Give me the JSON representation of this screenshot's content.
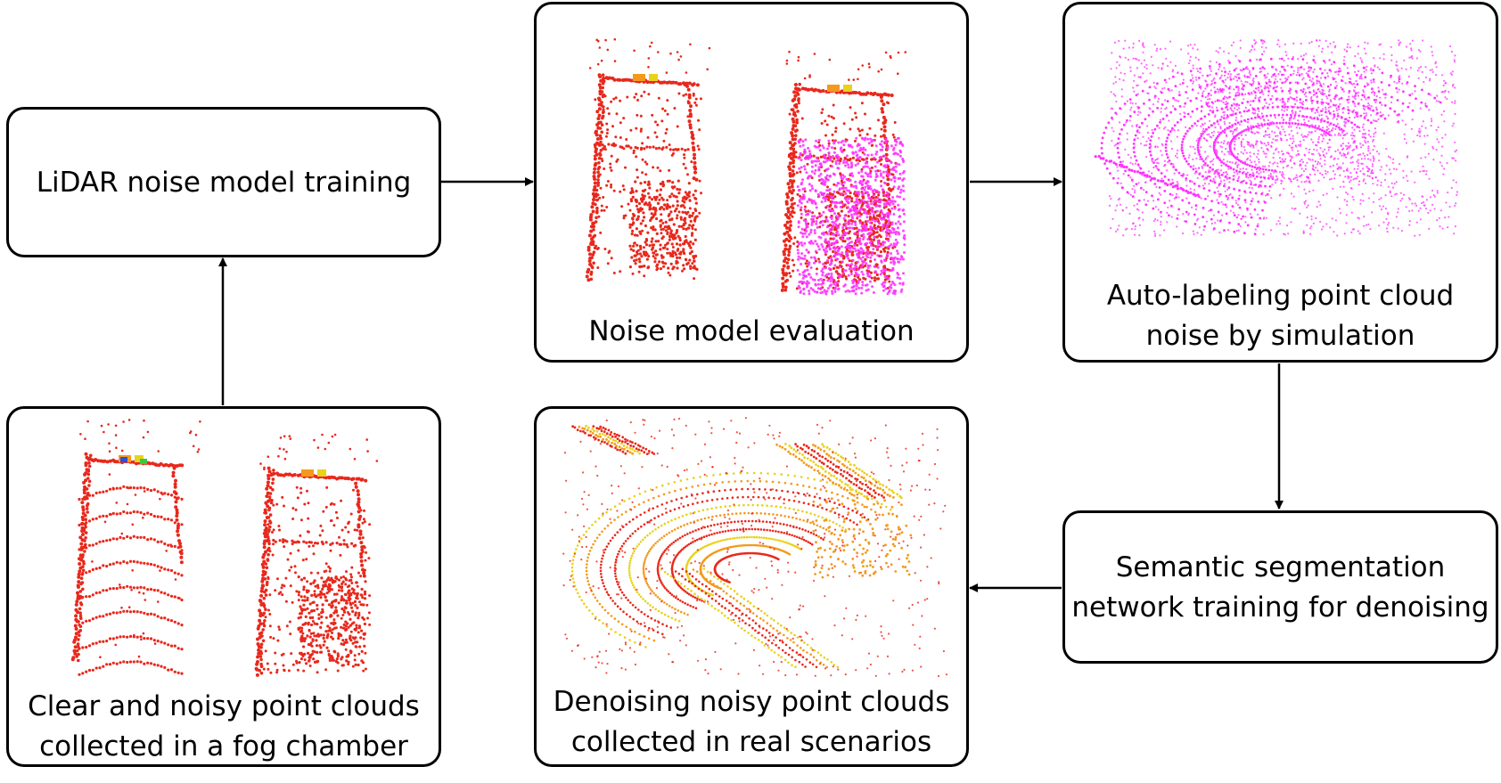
{
  "nodes": {
    "training": {
      "label": "LiDAR noise model training"
    },
    "evaluation": {
      "label": "Noise model evaluation"
    },
    "autolabel": {
      "label_line1": "Auto-labeling point cloud",
      "label_line2": "noise by simulation"
    },
    "segmentation": {
      "label_line1": "Semantic segmentation",
      "label_line2": "network training for denoising"
    },
    "denoising": {
      "label_line1": "Denoising noisy point clouds",
      "label_line2": "collected in real scenarios"
    },
    "collection": {
      "label_line1": "Clear and noisy point clouds",
      "label_line2": "collected in a fog chamber"
    }
  },
  "edges": [
    {
      "from": "collection",
      "to": "training"
    },
    {
      "from": "training",
      "to": "evaluation"
    },
    {
      "from": "evaluation",
      "to": "autolabel"
    },
    {
      "from": "autolabel",
      "to": "segmentation"
    },
    {
      "from": "segmentation",
      "to": "denoising"
    }
  ],
  "colors": {
    "stroke": "#000000",
    "point_red": "#e8281c",
    "point_magenta": "#ff33ff",
    "point_orange": "#f39a1c",
    "point_yellow": "#e8d21c",
    "point_green": "#3cc83c",
    "point_blue": "#2a52d8"
  }
}
